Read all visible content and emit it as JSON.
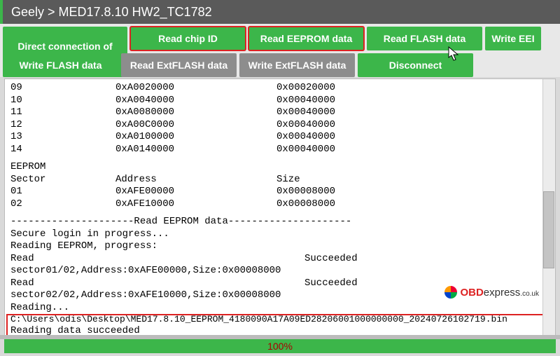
{
  "title": "Geely > MED17.8.10 HW2_TC1782",
  "buttons": {
    "direct": "Direct connection of\ndiagram",
    "readid": "Read chip ID",
    "readeep": "Read EEPROM data",
    "readflash": "Read FLASH data",
    "writeeep": "Write EEI",
    "writeflash": "Write FLASH data",
    "readext": "Read ExtFLASH data",
    "writeext": "Write ExtFLASH data",
    "disconnect": "Disconnect"
  },
  "flash_rows": [
    {
      "n": "09",
      "addr": "0xA0020000",
      "size": "0x00020000"
    },
    {
      "n": "10",
      "addr": "0xA0040000",
      "size": "0x00040000"
    },
    {
      "n": "11",
      "addr": "0xA0080000",
      "size": "0x00040000"
    },
    {
      "n": "12",
      "addr": "0xA00C0000",
      "size": "0x00040000"
    },
    {
      "n": "13",
      "addr": "0xA0100000",
      "size": "0x00040000"
    },
    {
      "n": "14",
      "addr": "0xA0140000",
      "size": "0x00040000"
    }
  ],
  "eeprom": {
    "heading": "EEPROM",
    "cols": {
      "sector": "Sector",
      "addr": "Address",
      "size": "Size"
    },
    "rows": [
      {
        "n": "01",
        "addr": "0xAFE00000",
        "size": "0x00008000"
      },
      {
        "n": "02",
        "addr": "0xAFE10000",
        "size": "0x00008000"
      }
    ]
  },
  "log": {
    "divider": "---------------------Read EEPROM data---------------------",
    "l1": "Secure login in progress...",
    "l2": "Reading EEPROM, progress:",
    "l3a": "Read sector01/02,Address:0xAFE00000,Size:0x00008000",
    "l3b": "Succeeded",
    "l4a": "Read sector02/02,Address:0xAFE10000,Size:0x00008000",
    "l4b": "Succeeded",
    "l5": "Reading...",
    "path": "C:\\Users\\odis\\Desktop\\MED17.8.10_EEPROM_4180090A17A09ED28206001000000000_20240726102719.bin",
    "done": "Reading data succeeded"
  },
  "progress": {
    "label": "100%",
    "value": 100
  },
  "watermark": {
    "brand": "OBD",
    "rest": "express",
    "tld": ".co.uk"
  },
  "colors": {
    "green": "#3cb64a",
    "gray": "#8d8d8d",
    "red": "#d22222"
  }
}
